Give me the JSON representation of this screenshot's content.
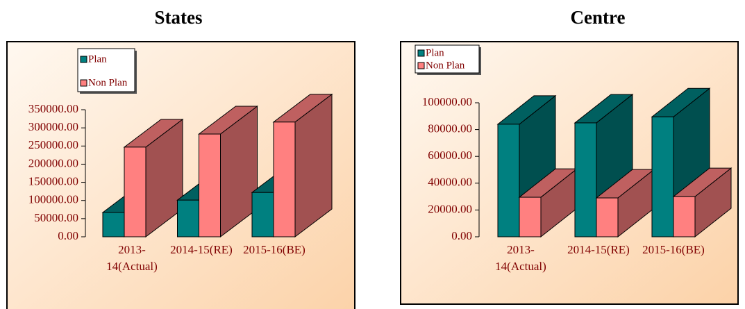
{
  "chart_data": [
    {
      "type": "bar",
      "title": "States",
      "categories": [
        "2013-14(Actual)",
        "2014-15(RE)",
        "2015-16(BE)"
      ],
      "series": [
        {
          "name": "Plan",
          "color": "#008080",
          "values": [
            67000,
            101000,
            122000
          ]
        },
        {
          "name": "Non Plan",
          "color": "#ff8080",
          "values": [
            247000,
            283000,
            316000
          ]
        }
      ],
      "ylim": [
        0,
        350000
      ],
      "yticks": [
        {
          "value": 0,
          "label": "0.00"
        },
        {
          "value": 50000,
          "label": "50000.00"
        },
        {
          "value": 100000,
          "label": "100000.00"
        },
        {
          "value": 150000,
          "label": "150000.00"
        },
        {
          "value": 200000,
          "label": "200000.00"
        },
        {
          "value": 250000,
          "label": "250000.00"
        },
        {
          "value": 300000,
          "label": "300000.00"
        },
        {
          "value": 350000,
          "label": "350000.00"
        }
      ],
      "legend": "top-left"
    },
    {
      "type": "bar",
      "title": "Centre",
      "categories": [
        "2013-14(Actual)",
        "2014-15(RE)",
        "2015-16(BE)"
      ],
      "series": [
        {
          "name": "Plan",
          "color": "#008080",
          "values": [
            84000,
            85000,
            89500
          ]
        },
        {
          "name": "Non Plan",
          "color": "#ff8080",
          "values": [
            29500,
            29000,
            30000
          ]
        }
      ],
      "ylim": [
        0,
        100000
      ],
      "yticks": [
        {
          "value": 0,
          "label": "0.00"
        },
        {
          "value": 20000,
          "label": "20000.00"
        },
        {
          "value": 40000,
          "label": "40000.00"
        },
        {
          "value": 60000,
          "label": "60000.00"
        },
        {
          "value": 80000,
          "label": "80000.00"
        },
        {
          "value": 100000,
          "label": "100000.00"
        }
      ],
      "legend": "top-left"
    }
  ]
}
